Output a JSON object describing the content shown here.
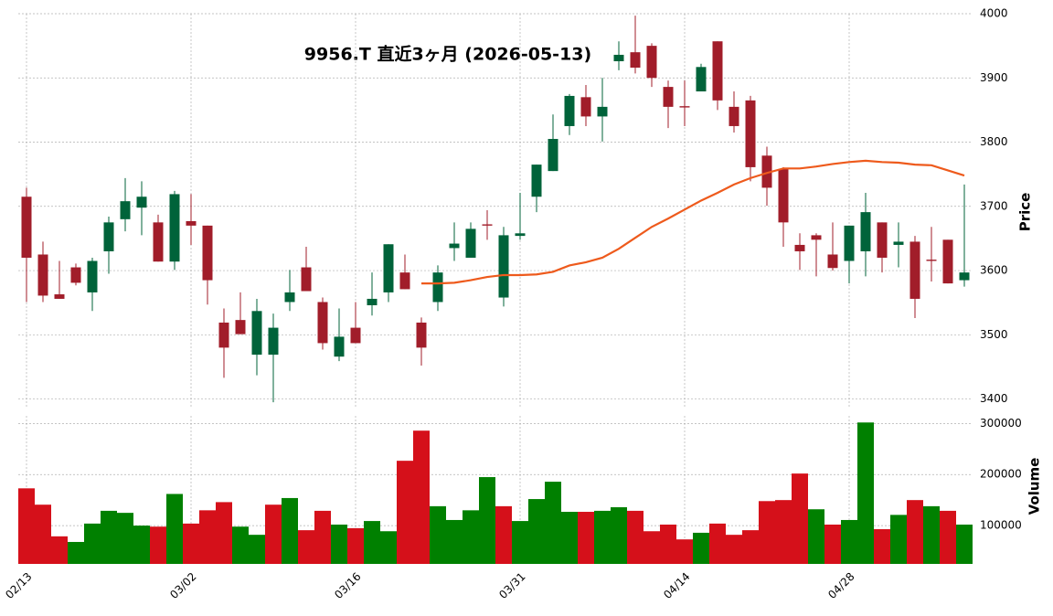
{
  "chart_data": {
    "type": "candlestick",
    "title": "9956.T  直近3ヶ月  (2026-05-13)",
    "categories": [
      "02/13",
      null,
      null,
      null,
      null,
      null,
      null,
      null,
      null,
      null,
      "03/02",
      null,
      null,
      null,
      null,
      null,
      null,
      null,
      null,
      null,
      "03/16",
      null,
      null,
      null,
      null,
      null,
      null,
      null,
      null,
      null,
      "03/31",
      null,
      null,
      null,
      null,
      null,
      null,
      null,
      null,
      null,
      "04/14",
      null,
      null,
      null,
      null,
      null,
      null,
      null,
      null,
      null,
      "04/28",
      null,
      null,
      null,
      null,
      null,
      null,
      null
    ],
    "open": [
      3715,
      3625,
      3563,
      3605,
      3566,
      3630,
      3680,
      3698,
      3675,
      3614,
      3677,
      3670,
      3519,
      3523,
      3469,
      3469,
      3551,
      3605,
      3551,
      3466,
      3511,
      3546,
      3566,
      3597,
      3519,
      3551,
      3635,
      3620,
      3672,
      3558,
      3654,
      3715,
      3755,
      3825,
      3870,
      3840,
      3926,
      3940,
      3950,
      3886,
      3856,
      3879,
      3957,
      3855,
      3865,
      3779,
      3758,
      3640,
      3655,
      3625,
      3615,
      3630,
      3675,
      3640,
      3645,
      3617,
      3648,
      3585
    ],
    "high": [
      3729,
      3645,
      3615,
      3611,
      3620,
      3684,
      3744,
      3739,
      3687,
      3724,
      3719,
      3670,
      3541,
      3566,
      3556,
      3533,
      3601,
      3637,
      3558,
      3541,
      3551,
      3597,
      3641,
      3625,
      3527,
      3608,
      3675,
      3675,
      3694,
      3668,
      3721,
      3765,
      3843,
      3875,
      3889,
      3900,
      3957,
      3997,
      3954,
      3896,
      3896,
      3922,
      3957,
      3879,
      3872,
      3793,
      3761,
      3658,
      3658,
      3675,
      3670,
      3721,
      3675,
      3675,
      3654,
      3668,
      3648,
      3734
    ],
    "low": [
      3551,
      3551,
      3556,
      3577,
      3537,
      3595,
      3661,
      3655,
      3614,
      3601,
      3640,
      3547,
      3433,
      3501,
      3437,
      3395,
      3537,
      3568,
      3477,
      3459,
      3487,
      3530,
      3551,
      3571,
      3452,
      3537,
      3615,
      3620,
      3648,
      3544,
      3648,
      3691,
      3755,
      3811,
      3825,
      3801,
      3912,
      3907,
      3886,
      3822,
      3825,
      3879,
      3850,
      3815,
      3739,
      3701,
      3637,
      3601,
      3591,
      3600,
      3580,
      3591,
      3597,
      3605,
      3526,
      3583,
      3580,
      3575
    ],
    "close": [
      3620,
      3561,
      3556,
      3581,
      3615,
      3675,
      3708,
      3715,
      3614,
      3719,
      3670,
      3585,
      3480,
      3501,
      3537,
      3511,
      3566,
      3568,
      3487,
      3497,
      3487,
      3556,
      3641,
      3571,
      3480,
      3597,
      3642,
      3665,
      3670,
      3655,
      3658,
      3765,
      3805,
      3872,
      3840,
      3855,
      3936,
      3916,
      3900,
      3855,
      3854,
      3917,
      3865,
      3825,
      3761,
      3729,
      3675,
      3630,
      3648,
      3604,
      3670,
      3691,
      3620,
      3645,
      3556,
      3615,
      3580,
      3597
    ],
    "up_color": "#00633a",
    "down_color": "#a11d2a",
    "ma": {
      "color": "#ee5a1c",
      "values": [
        null,
        null,
        null,
        null,
        null,
        null,
        null,
        null,
        null,
        null,
        null,
        null,
        null,
        null,
        null,
        null,
        null,
        null,
        null,
        null,
        null,
        null,
        null,
        null,
        3580,
        3580,
        3581,
        3585,
        3590,
        3593,
        3593,
        3594,
        3598,
        3608,
        3613,
        3620,
        3634,
        3651,
        3668,
        3681,
        3695,
        3709,
        3721,
        3734,
        3744,
        3752,
        3759,
        3759,
        3762,
        3766,
        3769,
        3771,
        3769,
        3768,
        3765,
        3764,
        3756,
        3748
      ]
    },
    "ylabel": "Price",
    "ylim": [
      3388,
      4000
    ],
    "yticks": [
      3400,
      3500,
      3600,
      3700,
      3800,
      3900,
      4000
    ],
    "grid": true,
    "volume": {
      "ylabel": "Volume",
      "ylim": [
        25000,
        315000
      ],
      "yticks": [
        100000,
        200000,
        300000
      ],
      "values": [
        173000,
        141000,
        79000,
        68000,
        104000,
        129000,
        125000,
        100000,
        98000,
        162000,
        104000,
        130000,
        146000,
        98000,
        82000,
        141000,
        154000,
        91000,
        129000,
        102000,
        95000,
        109000,
        89000,
        227000,
        286000,
        138000,
        111000,
        130000,
        195000,
        138000,
        109000,
        152000,
        186000,
        127000,
        127000,
        129000,
        136000,
        129000,
        89000,
        102000,
        73000,
        86000,
        104000,
        82000,
        91000,
        148000,
        150000,
        202000,
        132000,
        102000,
        111000,
        302000,
        93000,
        121000,
        150000,
        138000,
        129000,
        102000
      ],
      "colors": [
        "#d5101a",
        "#d5101a",
        "#d5101a",
        "#008000",
        "#008000",
        "#008000",
        "#008000",
        "#008000",
        "#d5101a",
        "#008000",
        "#d5101a",
        "#d5101a",
        "#d5101a",
        "#008000",
        "#008000",
        "#d5101a",
        "#008000",
        "#d5101a",
        "#d5101a",
        "#008000",
        "#d5101a",
        "#008000",
        "#008000",
        "#d5101a",
        "#d5101a",
        "#008000",
        "#008000",
        "#008000",
        "#008000",
        "#d5101a",
        "#008000",
        "#008000",
        "#008000",
        "#008000",
        "#d5101a",
        "#008000",
        "#008000",
        "#d5101a",
        "#d5101a",
        "#d5101a",
        "#d5101a",
        "#008000",
        "#d5101a",
        "#d5101a",
        "#d5101a",
        "#d5101a",
        "#d5101a",
        "#d5101a",
        "#008000",
        "#d5101a",
        "#008000",
        "#008000",
        "#d5101a",
        "#008000",
        "#d5101a",
        "#008000",
        "#d5101a",
        "#008000"
      ]
    }
  }
}
